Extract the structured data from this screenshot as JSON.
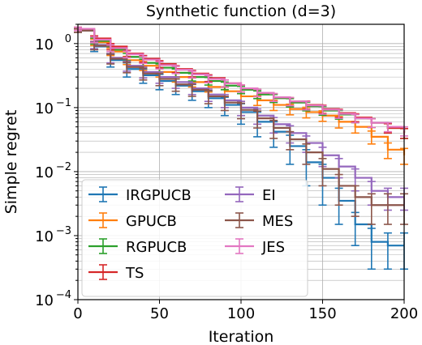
{
  "chart_data": {
    "type": "line",
    "title": "Synthetic function (d=3)",
    "xlabel": "Iteration",
    "ylabel": "Simple regret",
    "xlim": [
      0,
      200
    ],
    "ylim": [
      0.0001,
      2
    ],
    "yscale": "log",
    "grid": true,
    "legend_position": "lower-left",
    "x_ticks": [
      0,
      50,
      100,
      150,
      200
    ],
    "x_tick_labels": [
      "0",
      "50",
      "100",
      "150",
      "200"
    ],
    "y_ticks": [
      0.0001,
      0.001,
      0.01,
      0.1,
      1
    ],
    "y_tick_labels": [
      {
        "base": "10",
        "exp": "−4"
      },
      {
        "base": "10",
        "exp": "−3"
      },
      {
        "base": "10",
        "exp": "−2"
      },
      {
        "base": "10",
        "exp": "−1"
      },
      {
        "base": "10",
        "exp": "0"
      }
    ],
    "series": [
      {
        "name": "IRGPUCB",
        "color": "#1f77b4",
        "x": [
          0,
          10,
          20,
          30,
          40,
          50,
          60,
          70,
          80,
          90,
          100,
          110,
          120,
          130,
          140,
          150,
          160,
          170,
          180,
          190,
          200
        ],
        "y": [
          1.6,
          0.9,
          0.55,
          0.4,
          0.32,
          0.26,
          0.22,
          0.18,
          0.14,
          0.11,
          0.085,
          0.06,
          0.042,
          0.025,
          0.014,
          0.008,
          0.0035,
          0.0015,
          0.0008,
          0.0007,
          0.0007
        ],
        "err": [
          0.1,
          0.15,
          0.12,
          0.1,
          0.08,
          0.07,
          0.06,
          0.05,
          0.04,
          0.035,
          0.03,
          0.025,
          0.018,
          0.012,
          0.008,
          0.005,
          0.002,
          0.0008,
          0.0005,
          0.0004,
          0.0004
        ]
      },
      {
        "name": "GPUCB",
        "color": "#ff7f0e",
        "x": [
          0,
          10,
          20,
          30,
          40,
          50,
          60,
          70,
          80,
          90,
          100,
          110,
          120,
          130,
          140,
          150,
          160,
          170,
          180,
          190,
          200
        ],
        "y": [
          1.6,
          1.05,
          0.75,
          0.55,
          0.45,
          0.36,
          0.3,
          0.25,
          0.21,
          0.18,
          0.15,
          0.13,
          0.11,
          0.095,
          0.085,
          0.075,
          0.06,
          0.05,
          0.035,
          0.022,
          0.018
        ],
        "err": [
          0.1,
          0.12,
          0.1,
          0.08,
          0.07,
          0.06,
          0.05,
          0.04,
          0.035,
          0.03,
          0.025,
          0.022,
          0.02,
          0.018,
          0.016,
          0.014,
          0.012,
          0.01,
          0.008,
          0.006,
          0.005
        ]
      },
      {
        "name": "RGPUCB",
        "color": "#2ca02c",
        "x": [
          0,
          10,
          20,
          30,
          40,
          50,
          60,
          70,
          80,
          90,
          100,
          110,
          120,
          130,
          140,
          150,
          160,
          170,
          180,
          190,
          200
        ],
        "y": [
          1.6,
          1.1,
          0.8,
          0.62,
          0.5,
          0.42,
          0.35,
          0.3,
          0.26,
          0.22,
          0.19,
          0.16,
          0.14,
          0.12,
          0.105,
          0.09,
          0.078,
          0.068,
          0.058,
          0.048,
          0.04
        ],
        "err": [
          0.1,
          0.12,
          0.1,
          0.08,
          0.07,
          0.06,
          0.05,
          0.04,
          0.035,
          0.03,
          0.025,
          0.022,
          0.02,
          0.018,
          0.016,
          0.014,
          0.012,
          0.01,
          0.009,
          0.008,
          0.007
        ]
      },
      {
        "name": "TS",
        "color": "#d62728",
        "x": [
          0,
          10,
          20,
          30,
          40,
          50,
          60,
          70,
          80,
          90,
          100,
          110,
          120,
          130,
          140,
          150,
          160,
          170,
          180,
          190,
          200
        ],
        "y": [
          1.7,
          1.2,
          0.9,
          0.7,
          0.58,
          0.48,
          0.4,
          0.34,
          0.29,
          0.24,
          0.2,
          0.17,
          0.145,
          0.125,
          0.11,
          0.095,
          0.082,
          0.07,
          0.058,
          0.048,
          0.04
        ],
        "err": [
          0.1,
          0.12,
          0.1,
          0.08,
          0.07,
          0.06,
          0.05,
          0.04,
          0.035,
          0.03,
          0.025,
          0.022,
          0.02,
          0.018,
          0.016,
          0.014,
          0.012,
          0.01,
          0.009,
          0.008,
          0.007
        ]
      },
      {
        "name": "EI",
        "color": "#9467bd",
        "x": [
          0,
          10,
          20,
          30,
          40,
          50,
          60,
          70,
          80,
          90,
          100,
          110,
          120,
          130,
          140,
          150,
          160,
          170,
          180,
          190,
          200
        ],
        "y": [
          1.6,
          0.95,
          0.6,
          0.45,
          0.36,
          0.3,
          0.25,
          0.2,
          0.16,
          0.13,
          0.1,
          0.075,
          0.055,
          0.04,
          0.028,
          0.018,
          0.012,
          0.008,
          0.005,
          0.004,
          0.004
        ],
        "err": [
          0.1,
          0.12,
          0.1,
          0.08,
          0.07,
          0.06,
          0.05,
          0.04,
          0.035,
          0.03,
          0.025,
          0.02,
          0.015,
          0.012,
          0.008,
          0.006,
          0.004,
          0.003,
          0.002,
          0.0015,
          0.0015
        ]
      },
      {
        "name": "MES",
        "color": "#8c564b",
        "x": [
          0,
          10,
          20,
          30,
          40,
          50,
          60,
          70,
          80,
          90,
          100,
          110,
          120,
          130,
          140,
          150,
          160,
          170,
          180,
          190,
          200
        ],
        "y": [
          1.6,
          0.92,
          0.58,
          0.43,
          0.34,
          0.28,
          0.23,
          0.19,
          0.15,
          0.12,
          0.092,
          0.068,
          0.048,
          0.032,
          0.02,
          0.011,
          0.006,
          0.004,
          0.003,
          0.003,
          0.003
        ],
        "err": [
          0.1,
          0.12,
          0.1,
          0.08,
          0.07,
          0.06,
          0.05,
          0.04,
          0.035,
          0.03,
          0.025,
          0.02,
          0.015,
          0.01,
          0.007,
          0.005,
          0.003,
          0.002,
          0.0015,
          0.0015,
          0.0015
        ]
      },
      {
        "name": "JES",
        "color": "#e377c2",
        "x": [
          0,
          10,
          20,
          30,
          40,
          50,
          60,
          70,
          80,
          90,
          100,
          110,
          120,
          130,
          140,
          150,
          160,
          170,
          180,
          190,
          200
        ],
        "y": [
          1.7,
          1.15,
          0.85,
          0.68,
          0.56,
          0.46,
          0.39,
          0.33,
          0.28,
          0.24,
          0.2,
          0.17,
          0.145,
          0.125,
          0.108,
          0.093,
          0.08,
          0.068,
          0.058,
          0.05,
          0.043
        ],
        "err": [
          0.1,
          0.12,
          0.1,
          0.08,
          0.07,
          0.06,
          0.05,
          0.04,
          0.035,
          0.03,
          0.025,
          0.022,
          0.02,
          0.018,
          0.016,
          0.014,
          0.012,
          0.01,
          0.009,
          0.008,
          0.007
        ]
      }
    ]
  }
}
